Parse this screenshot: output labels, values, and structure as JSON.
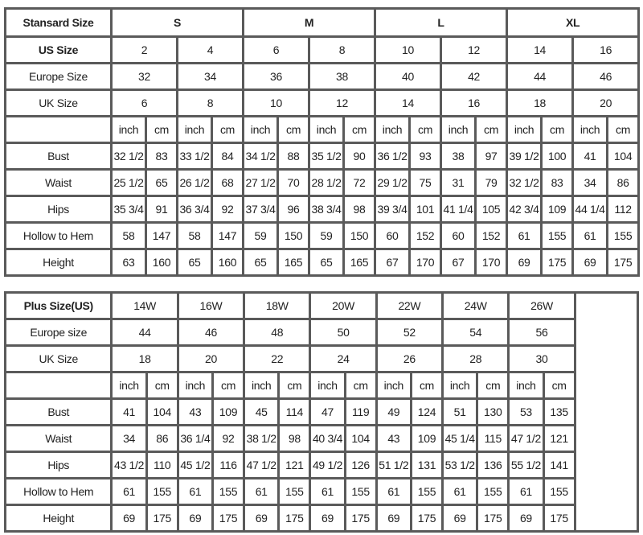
{
  "standard_table": {
    "header_label": "Stansard Size",
    "groups": [
      "S",
      "M",
      "L",
      "XL"
    ],
    "us_size_label": "US Size",
    "us_sizes": [
      "2",
      "4",
      "6",
      "8",
      "10",
      "12",
      "14",
      "16"
    ],
    "europe_label": "Europe Size",
    "europe_sizes": [
      "32",
      "34",
      "36",
      "38",
      "40",
      "42",
      "44",
      "46"
    ],
    "uk_label": "UK Size",
    "uk_sizes": [
      "6",
      "8",
      "10",
      "12",
      "14",
      "16",
      "18",
      "20"
    ],
    "units": [
      "inch",
      "cm"
    ],
    "measurements": [
      {
        "label": "Bust",
        "values": [
          "32 1/2",
          "83",
          "33 1/2",
          "84",
          "34 1/2",
          "88",
          "35 1/2",
          "90",
          "36 1/2",
          "93",
          "38",
          "97",
          "39 1/2",
          "100",
          "41",
          "104"
        ]
      },
      {
        "label": "Waist",
        "values": [
          "25 1/2",
          "65",
          "26 1/2",
          "68",
          "27 1/2",
          "70",
          "28 1/2",
          "72",
          "29 1/2",
          "75",
          "31",
          "79",
          "32 1/2",
          "83",
          "34",
          "86"
        ]
      },
      {
        "label": "Hips",
        "values": [
          "35 3/4",
          "91",
          "36 3/4",
          "92",
          "37 3/4",
          "96",
          "38 3/4",
          "98",
          "39 3/4",
          "101",
          "41 1/4",
          "105",
          "42 3/4",
          "109",
          "44 1/4",
          "112"
        ]
      },
      {
        "label": "Hollow to Hem",
        "values": [
          "58",
          "147",
          "58",
          "147",
          "59",
          "150",
          "59",
          "150",
          "60",
          "152",
          "60",
          "152",
          "61",
          "155",
          "61",
          "155"
        ]
      },
      {
        "label": "Height",
        "values": [
          "63",
          "160",
          "65",
          "160",
          "65",
          "165",
          "65",
          "165",
          "67",
          "170",
          "67",
          "170",
          "69",
          "175",
          "69",
          "175"
        ]
      }
    ]
  },
  "plus_table": {
    "header_label": "Plus Size(US)",
    "us_sizes": [
      "14W",
      "16W",
      "18W",
      "20W",
      "22W",
      "24W",
      "26W"
    ],
    "europe_label": "Europe size",
    "europe_sizes": [
      "44",
      "46",
      "48",
      "50",
      "52",
      "54",
      "56"
    ],
    "uk_label": "UK Size",
    "uk_sizes": [
      "18",
      "20",
      "22",
      "24",
      "26",
      "28",
      "30"
    ],
    "units": [
      "inch",
      "cm"
    ],
    "measurements": [
      {
        "label": "Bust",
        "values": [
          "41",
          "104",
          "43",
          "109",
          "45",
          "114",
          "47",
          "119",
          "49",
          "124",
          "51",
          "130",
          "53",
          "135"
        ]
      },
      {
        "label": "Waist",
        "values": [
          "34",
          "86",
          "36 1/4",
          "92",
          "38 1/2",
          "98",
          "40 3/4",
          "104",
          "43",
          "109",
          "45 1/4",
          "115",
          "47 1/2",
          "121"
        ]
      },
      {
        "label": "Hips",
        "values": [
          "43 1/2",
          "110",
          "45 1/2",
          "116",
          "47 1/2",
          "121",
          "49 1/2",
          "126",
          "51 1/2",
          "131",
          "53 1/2",
          "136",
          "55 1/2",
          "141"
        ]
      },
      {
        "label": "Hollow to Hem",
        "values": [
          "61",
          "155",
          "61",
          "155",
          "61",
          "155",
          "61",
          "155",
          "61",
          "155",
          "61",
          "155",
          "61",
          "155"
        ]
      },
      {
        "label": "Height",
        "values": [
          "69",
          "175",
          "69",
          "175",
          "69",
          "175",
          "69",
          "175",
          "69",
          "175",
          "69",
          "175",
          "69",
          "175"
        ]
      }
    ]
  }
}
